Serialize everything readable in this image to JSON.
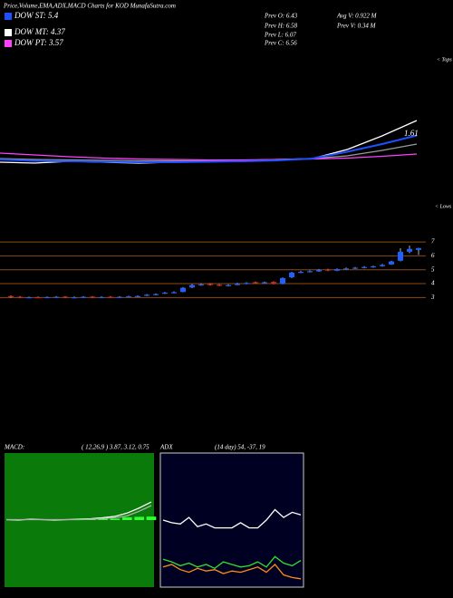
{
  "header": {
    "title": "Price,Volume,EMA,ADX,MACD Charts for KOD MunafaSutra.com",
    "legend": [
      {
        "label": "DOW ST: 5.4",
        "color": "#1e50ff"
      },
      {
        "label": "DOW MT: 4.37",
        "color": "#ffffff"
      },
      {
        "label": "DOW PT: 3.57",
        "color": "#ff40ff"
      }
    ],
    "stats": [
      "Prev  O: 6.43",
      "Avg V: 0.922  M",
      "Prev  H: 6.58",
      "Prev  V: 0.34  M",
      "Prev  L: 6.07",
      "Prev  C: 6.56"
    ]
  },
  "chart_data": [
    {
      "type": "line",
      "annotation": "1.61",
      "tops_label": "< Tops",
      "lows_label": "< Lows",
      "ylim": [
        0,
        2.6
      ],
      "series": [
        {
          "color": "#ffffff",
          "values": [
            1.02,
            1.0,
            1.04,
            1.02,
            1.0,
            1.02,
            1.05,
            1.06,
            1.08,
            1.1,
            1.3,
            1.6,
            1.94
          ]
        },
        {
          "color": "#9a9a9a",
          "values": [
            1.1,
            1.08,
            1.07,
            1.06,
            1.05,
            1.05,
            1.05,
            1.06,
            1.07,
            1.1,
            1.16,
            1.28,
            1.42
          ]
        },
        {
          "color": "#ff40ff",
          "values": [
            1.22,
            1.18,
            1.14,
            1.11,
            1.09,
            1.08,
            1.07,
            1.07,
            1.08,
            1.09,
            1.11,
            1.15,
            1.2
          ]
        },
        {
          "color": "#1e50ff",
          "values": [
            1.08,
            1.05,
            1.04,
            1.03,
            1.02,
            1.02,
            1.03,
            1.04,
            1.06,
            1.1,
            1.25,
            1.42,
            1.61
          ]
        }
      ]
    },
    {
      "type": "candlestick",
      "ylim": [
        2.5,
        7.4
      ],
      "yticks": [
        3,
        4,
        5,
        6,
        7
      ],
      "grid_color": "#8b4a14",
      "up_color": "#2060ff",
      "down_color": "#e02020",
      "open": [
        3.1,
        3.05,
        2.98,
        3.03,
        2.98,
        3.0,
        3.06,
        2.98,
        3.0,
        3.06,
        3.0,
        3.05,
        3.0,
        3.03,
        3.06,
        3.12,
        3.2,
        3.28,
        3.33,
        3.4,
        3.72,
        3.88,
        3.98,
        3.92,
        3.82,
        3.9,
        3.98,
        4.1,
        4.02,
        4.12,
        3.98,
        4.45,
        4.78,
        4.84,
        4.88,
        5.02,
        4.93,
        5.02,
        5.08,
        5.12,
        5.18,
        5.25,
        5.38,
        5.65,
        6.3,
        6.43
      ],
      "high": [
        3.15,
        3.1,
        3.06,
        3.07,
        3.07,
        3.1,
        3.1,
        3.07,
        3.1,
        3.1,
        3.08,
        3.1,
        3.1,
        3.12,
        3.15,
        3.25,
        3.3,
        3.4,
        3.45,
        3.75,
        3.97,
        4.02,
        4.02,
        3.97,
        3.95,
        4.05,
        4.1,
        4.15,
        4.15,
        4.17,
        4.45,
        4.85,
        4.92,
        4.96,
        5.06,
        5.07,
        5.1,
        5.16,
        5.2,
        5.26,
        5.3,
        5.42,
        5.65,
        6.55,
        6.75,
        6.58
      ],
      "low": [
        2.97,
        2.95,
        2.95,
        2.96,
        2.95,
        2.97,
        2.96,
        2.95,
        2.97,
        2.96,
        2.96,
        2.98,
        2.97,
        3.0,
        3.02,
        3.1,
        3.15,
        3.25,
        3.3,
        3.38,
        3.68,
        3.85,
        3.86,
        3.82,
        3.8,
        3.88,
        3.95,
        4.0,
        4.0,
        3.96,
        3.95,
        4.4,
        4.75,
        4.8,
        4.85,
        4.9,
        4.9,
        5.0,
        5.05,
        5.1,
        5.15,
        5.22,
        5.35,
        5.6,
        6.2,
        6.07
      ],
      "close": [
        3.05,
        3.0,
        3.02,
        3.0,
        3.03,
        3.05,
        3.0,
        3.02,
        3.05,
        3.0,
        3.03,
        3.02,
        3.05,
        3.08,
        3.1,
        3.2,
        3.25,
        3.35,
        3.38,
        3.7,
        3.9,
        3.95,
        3.9,
        3.85,
        3.9,
        4.0,
        4.05,
        4.05,
        4.1,
        4.0,
        4.4,
        4.8,
        4.85,
        4.9,
        5.0,
        4.95,
        5.05,
        5.1,
        5.15,
        5.2,
        5.25,
        5.35,
        5.6,
        6.3,
        6.5,
        6.56
      ]
    },
    {
      "type": "macd",
      "title": "MACD:",
      "subtitle": "( 12,26,9 ) 3.87, 3.12, 0.75",
      "ylim": [
        -14,
        14
      ],
      "background": "#0a7a0a",
      "series": [
        {
          "color": "#ffffff",
          "values": [
            0.1,
            0.0,
            0.2,
            0.1,
            0.0,
            0.1,
            0.2,
            0.3,
            0.5,
            0.8,
            1.5,
            2.6,
            3.87
          ]
        },
        {
          "color": "#b0b0b0",
          "values": [
            0.1,
            0.1,
            0.1,
            0.1,
            0.1,
            0.1,
            0.1,
            0.2,
            0.3,
            0.5,
            0.9,
            1.9,
            3.12
          ]
        },
        {
          "color": "#30ff30",
          "style": "bar",
          "values": [
            0.0,
            0.0,
            0.0,
            0.0,
            0.0,
            0.0,
            0.1,
            0.1,
            0.2,
            0.3,
            0.6,
            0.7,
            0.75
          ]
        }
      ]
    },
    {
      "type": "line",
      "title": "ADX",
      "subtitle": "(14  day) 54,  -37,  19",
      "ylim": [
        0,
        100
      ],
      "background": "#000022",
      "border": "#cccccc",
      "series": [
        {
          "color": "#ffffff",
          "values": [
            50,
            48,
            47,
            52,
            45,
            47,
            44,
            44,
            44,
            48,
            44,
            44,
            50,
            58,
            52,
            56,
            54
          ]
        },
        {
          "color": "#30e030",
          "values": [
            20,
            18,
            15,
            17,
            14,
            16,
            13,
            18,
            16,
            14,
            15,
            18,
            14,
            22,
            17,
            15,
            19
          ]
        },
        {
          "color": "#ff8c1a",
          "values": [
            14,
            16,
            12,
            10,
            13,
            11,
            12,
            9,
            11,
            10,
            12,
            14,
            10,
            16,
            8,
            6,
            5
          ]
        }
      ]
    }
  ]
}
